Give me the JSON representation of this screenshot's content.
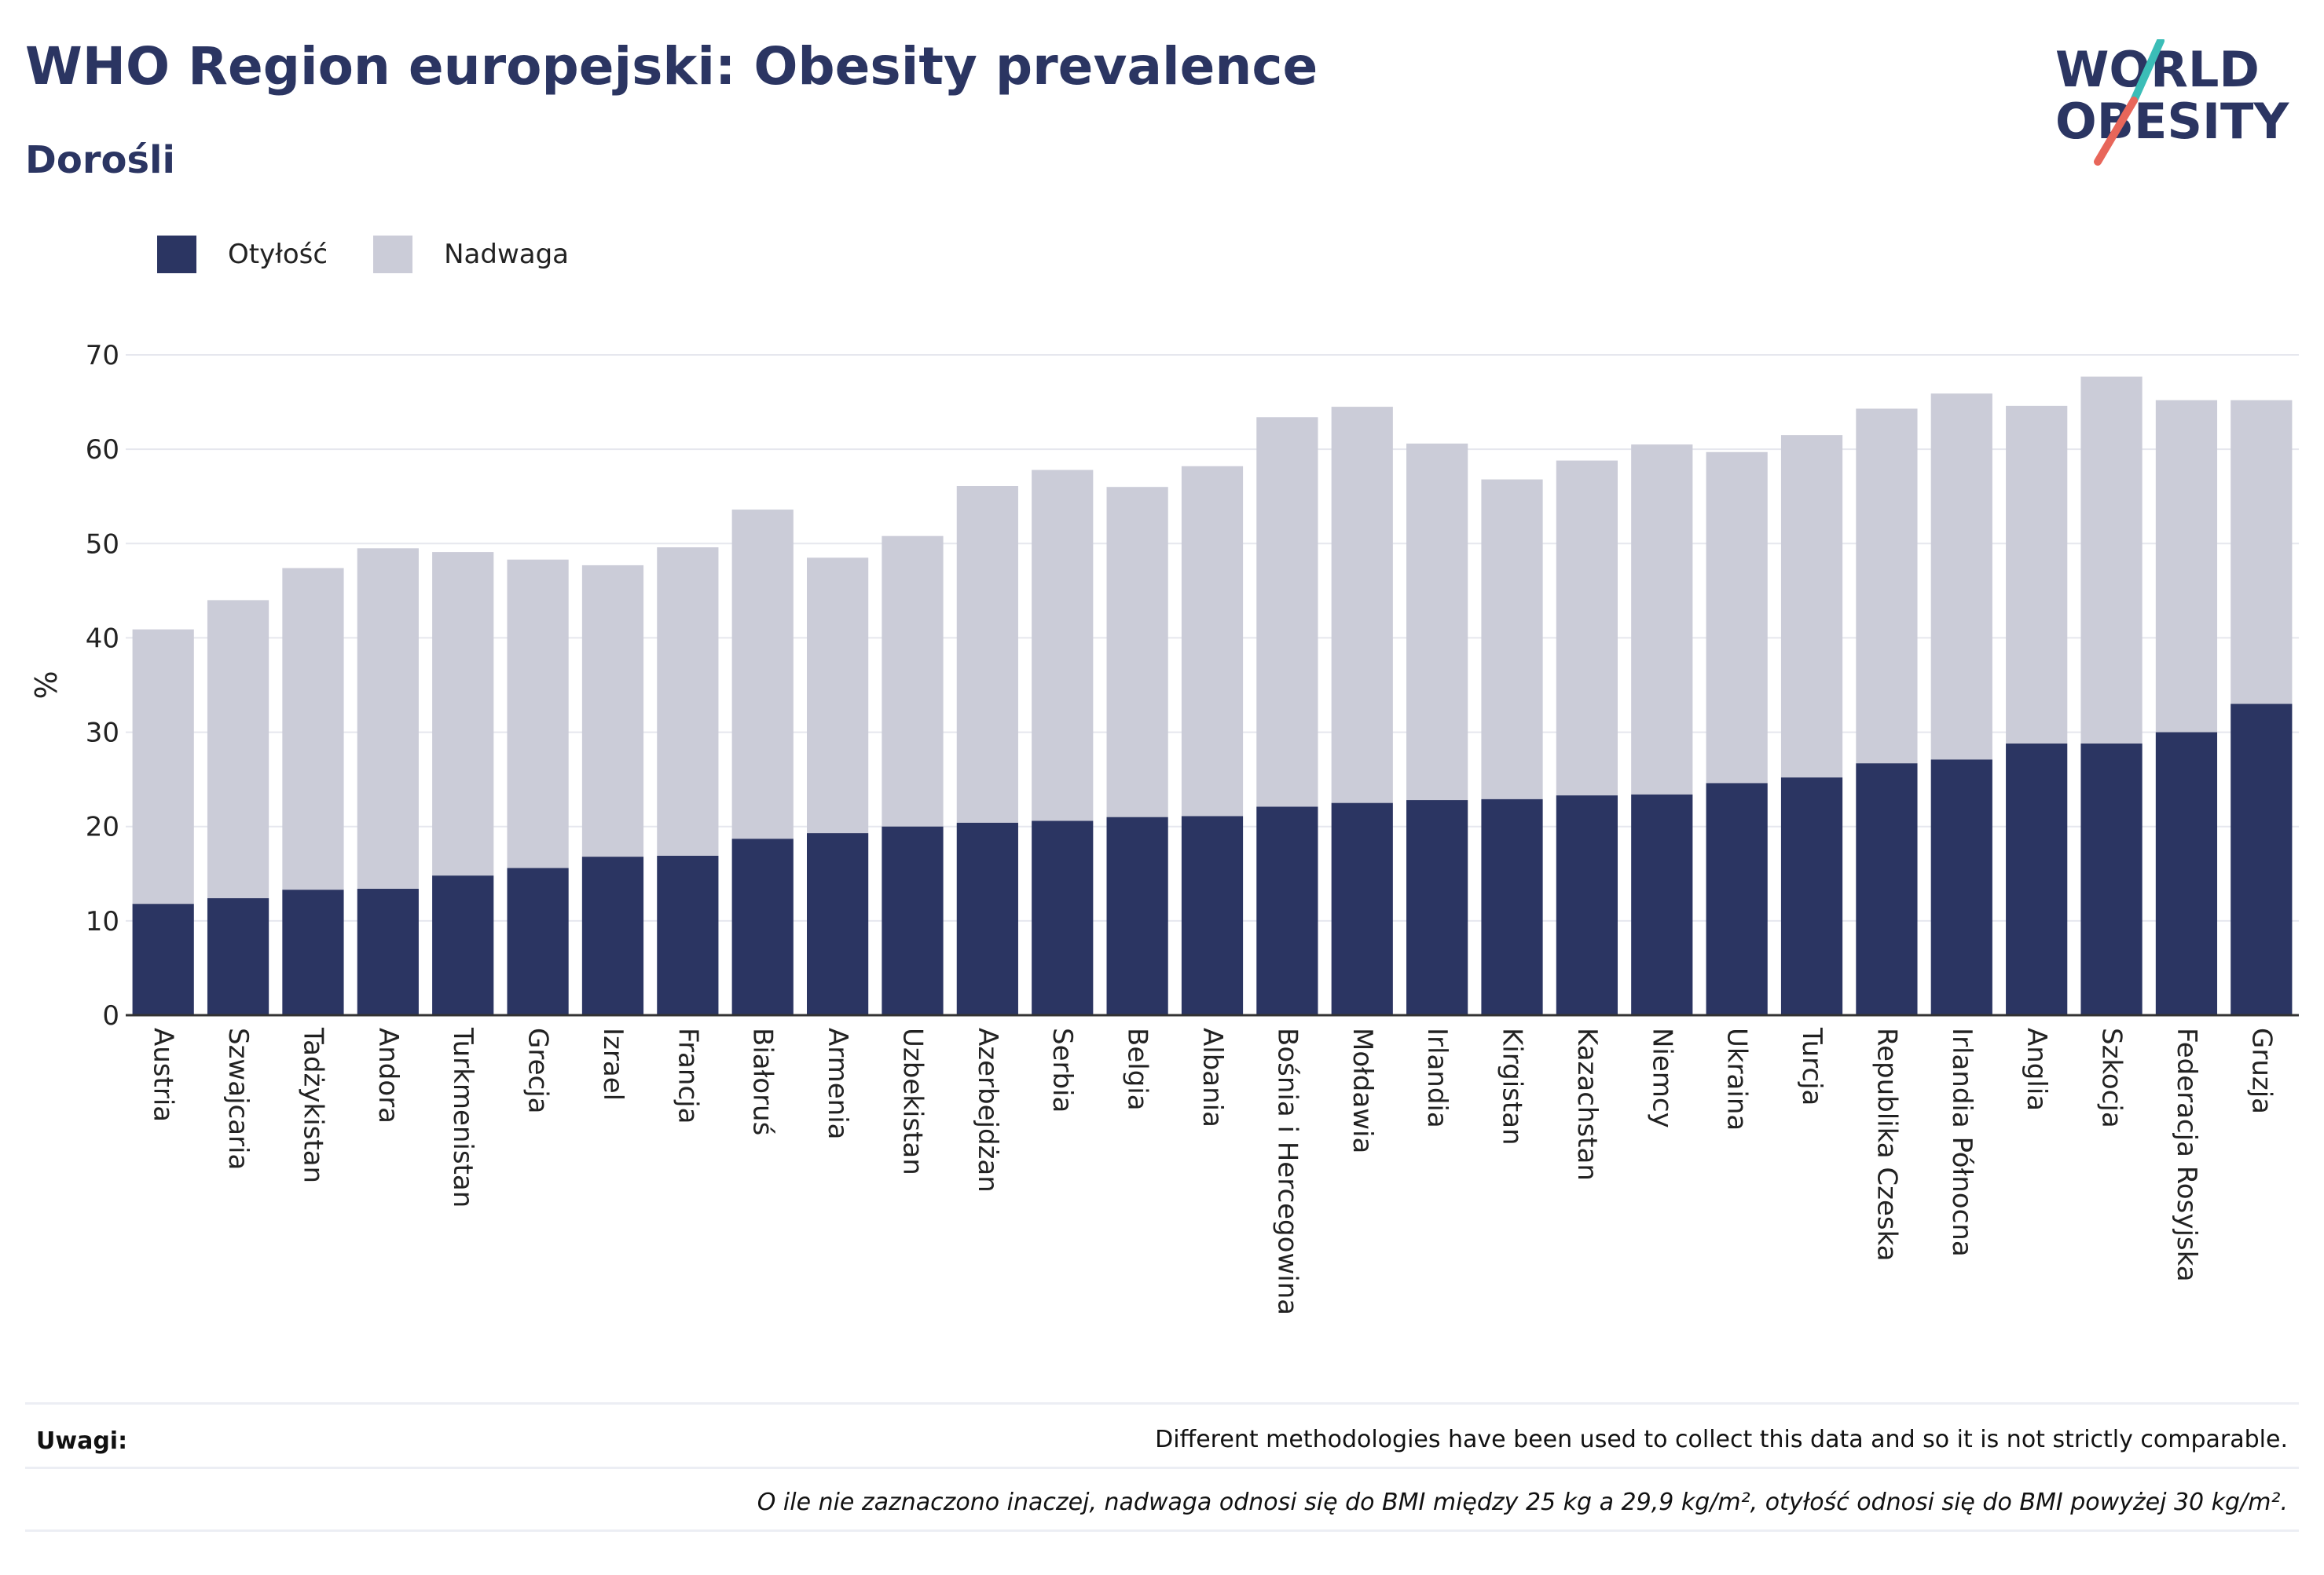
{
  "header": {
    "title": "WHO Region europejski: Obesity prevalence",
    "subtitle": "Dorośli"
  },
  "logo": {
    "line1": "WORLD",
    "line2": "OBESITY",
    "colors": {
      "text": "#2b3562",
      "slash_top": "#3bbdb7",
      "slash_bottom": "#e8665a"
    }
  },
  "legend": [
    {
      "label": "Otyłość",
      "color": "#2b3562"
    },
    {
      "label": "Nadwaga",
      "color": "#cbccd8"
    }
  ],
  "chart_data": {
    "type": "bar",
    "stacked": true,
    "ylabel": "%",
    "xlabel": "",
    "ylim": [
      0,
      70
    ],
    "yticks": [
      0,
      10,
      20,
      30,
      40,
      50,
      60,
      70
    ],
    "grid": true,
    "legend_position": "top-left",
    "categories": [
      "Austria",
      "Szwajcaria",
      "Tadżykistan",
      "Andora",
      "Turkmenistan",
      "Grecja",
      "Izrael",
      "Francja",
      "Białoruś",
      "Armenia",
      "Uzbekistan",
      "Azerbejdżan",
      "Serbia",
      "Belgia",
      "Albania",
      "Bośnia i Hercegowina",
      "Mołdawia",
      "Irlandia",
      "Kirgistan",
      "Kazachstan",
      "Niemcy",
      "Ukraina",
      "Turcja",
      "Republika Czeska",
      "Irlandia Północna",
      "Anglia",
      "Szkocja",
      "Federacja Rosyjska",
      "Gruzja"
    ],
    "series": [
      {
        "name": "Otyłość",
        "color": "#2b3562",
        "values": [
          11.8,
          12.4,
          13.3,
          13.4,
          14.8,
          15.6,
          16.8,
          16.9,
          18.7,
          19.3,
          20.0,
          20.4,
          20.6,
          21.0,
          21.1,
          22.1,
          22.5,
          22.8,
          22.9,
          23.3,
          23.4,
          24.6,
          25.2,
          26.7,
          27.1,
          28.8,
          28.8,
          30.0,
          33.0
        ]
      },
      {
        "name": "Nadwaga",
        "color": "#cbccd8",
        "values": [
          29.1,
          31.6,
          34.1,
          36.1,
          34.3,
          32.7,
          30.9,
          32.7,
          34.9,
          29.2,
          30.8,
          35.7,
          37.2,
          35.0,
          37.1,
          41.3,
          42.0,
          37.8,
          33.9,
          35.5,
          37.1,
          35.1,
          36.3,
          37.6,
          38.8,
          35.8,
          38.9,
          35.2,
          32.2
        ]
      }
    ]
  },
  "notes": {
    "label": "Uwagi:",
    "text": "Different methodologies have been used to collect this data and so it is not strictly comparable.",
    "footnote": "O ile nie zaznaczono inaczej, nadwaga odnosi się do BMI między 25 kg a 29,9 kg/m², otyłość odnosi się do BMI powyżej 30 kg/m²."
  }
}
